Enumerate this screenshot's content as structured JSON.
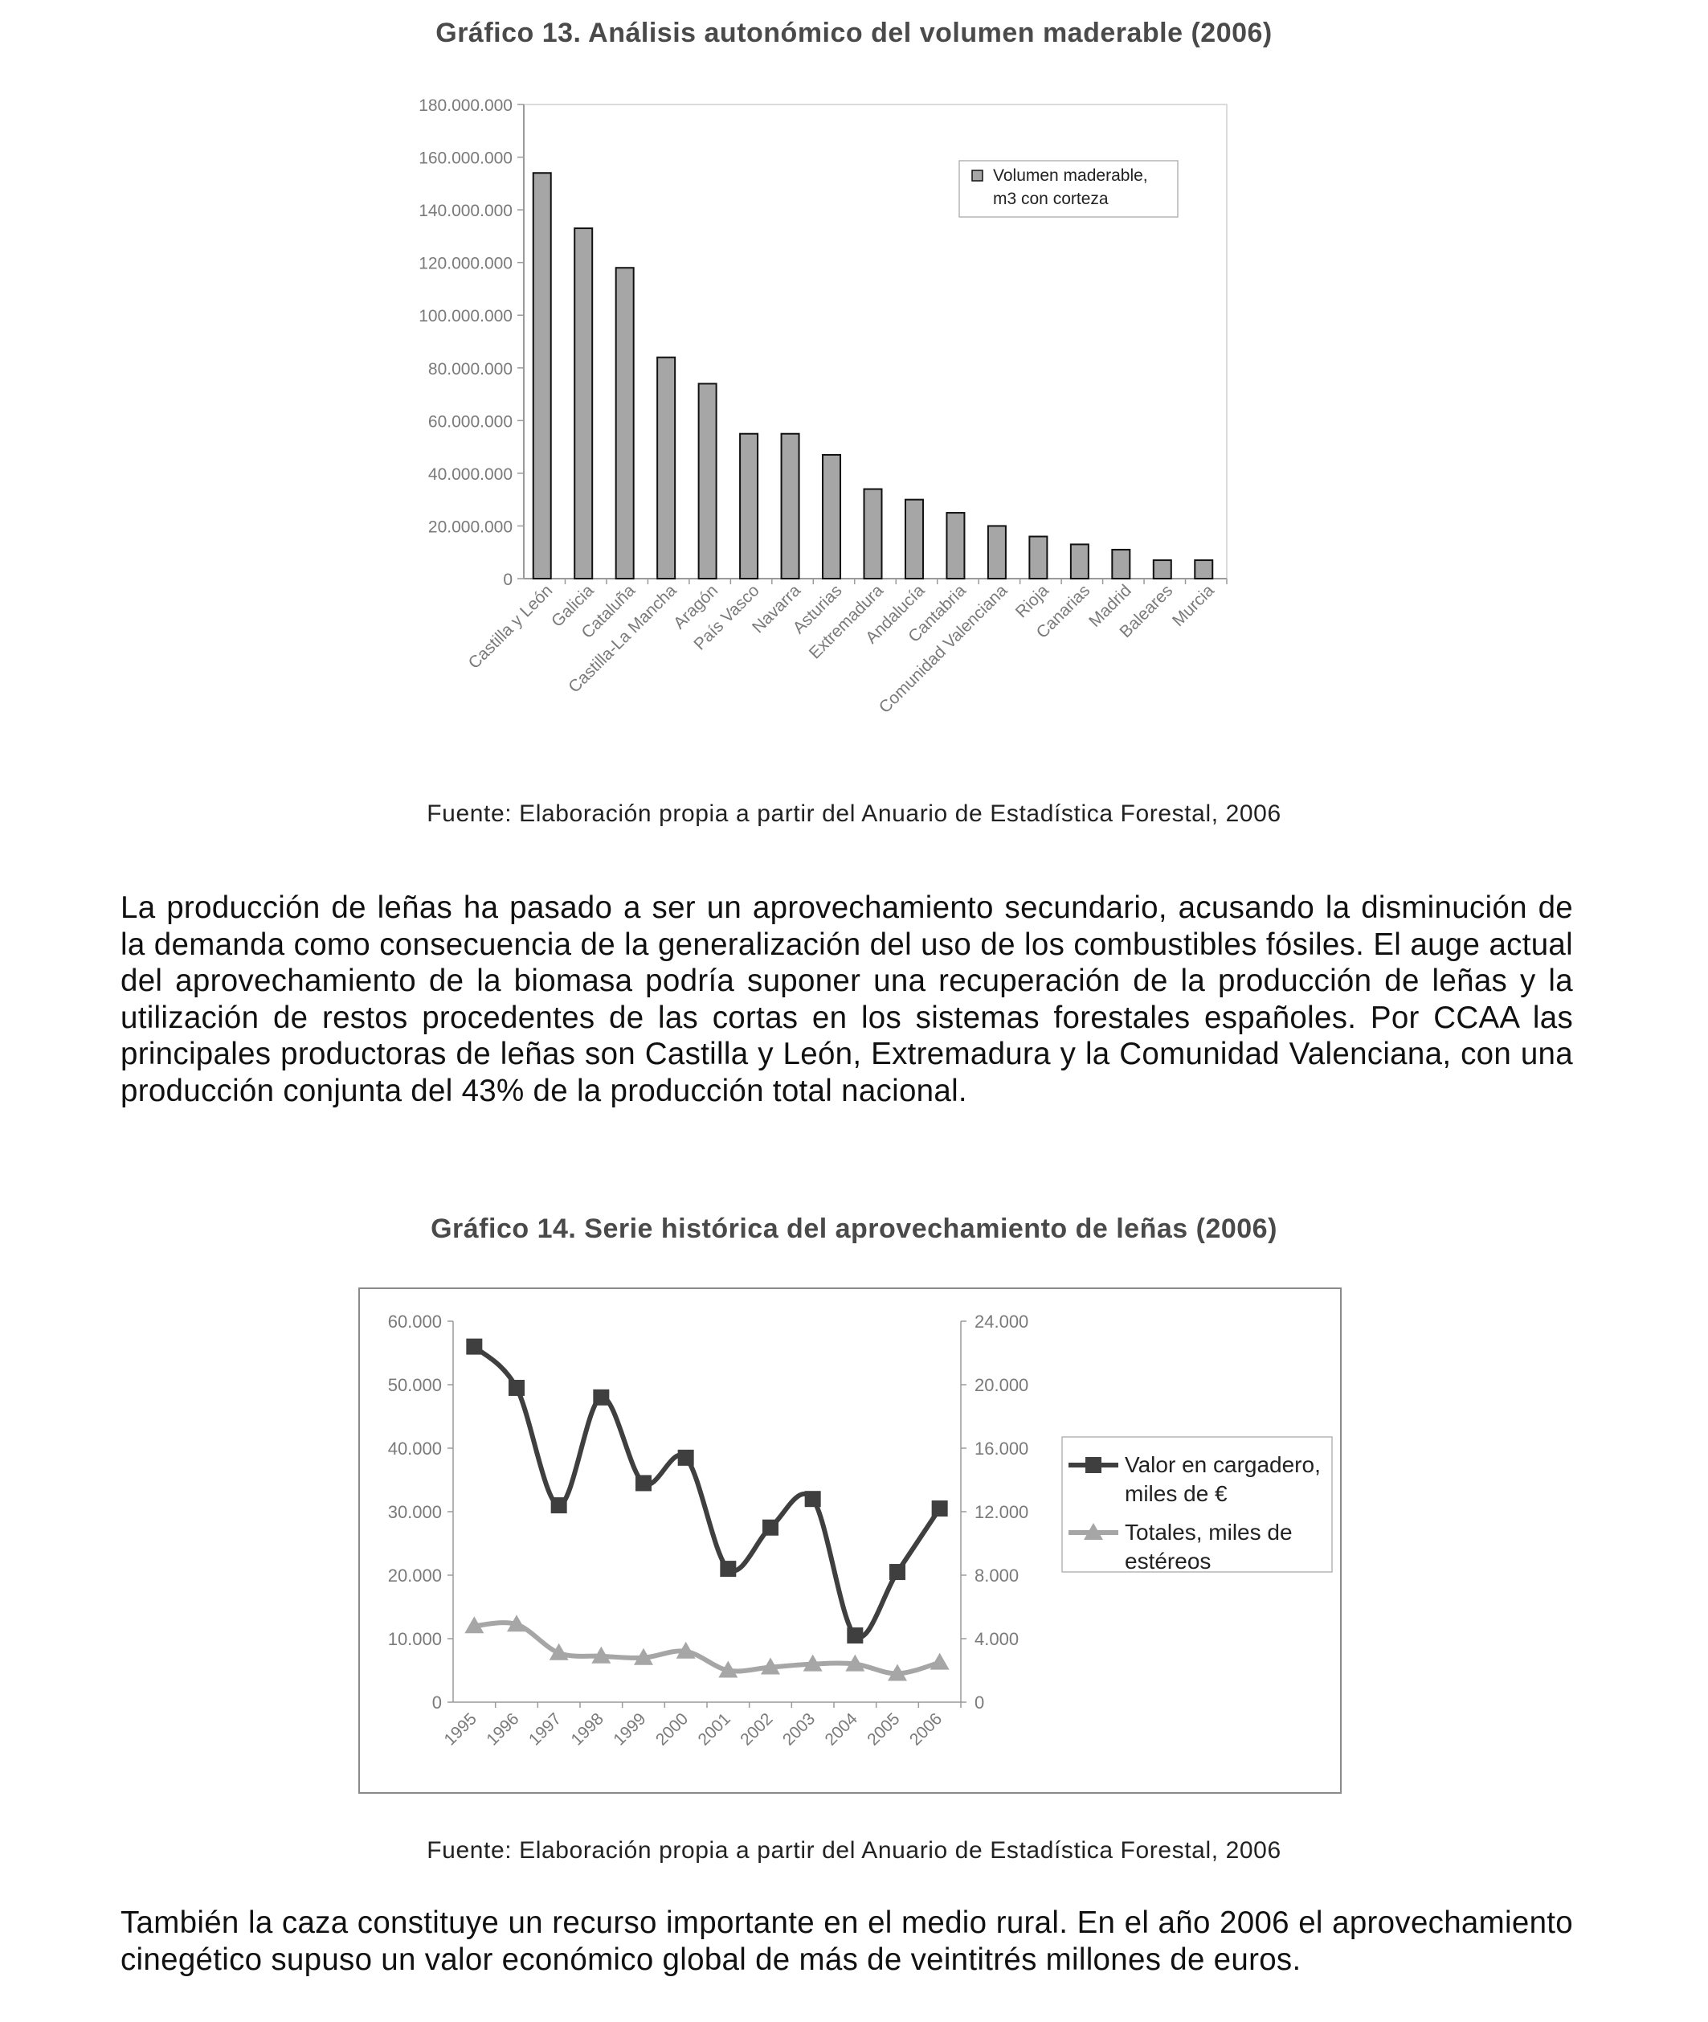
{
  "chart13_title": "Gráfico 13. Análisis autonómico del volumen maderable (2006)",
  "chart13_source": "Fuente: Elaboración propia a partir del Anuario de Estadística Forestal, 2006",
  "paragraph1": "La producción de leñas ha pasado a ser un aprovechamiento secundario, acusando la disminución de la demanda como consecuencia de la generalización del uso de los combustibles fósiles. El auge actual del aprovechamiento de la biomasa podría suponer una recuperación de la producción de leñas y la utilización de restos procedentes de las cortas en los sistemas forestales españoles. Por CCAA las principales productoras de leñas son Castilla y León, Extremadura y la Comunidad Valenciana, con una producción conjunta del 43% de la producción total nacional.",
  "chart14_title": "Gráfico 14. Serie histórica del aprovechamiento de leñas (2006)",
  "chart14_source": "Fuente: Elaboración propia a partir del Anuario de Estadística Forestal, 2006",
  "paragraph2": "También la caza constituye un recurso importante en el medio rural. En el año 2006 el aprovechamiento cinegético supuso un valor económico global de más de veintitrés millones de euros.",
  "chart_data": [
    {
      "type": "bar",
      "title": "Gráfico 13. Análisis autonómico del volumen maderable (2006)",
      "categories": [
        "Castilla y León",
        "Galicia",
        "Cataluña",
        "Castilla-La Mancha",
        "Aragón",
        "País Vasco",
        "Navarra",
        "Asturias",
        "Extremadura",
        "Andalucía",
        "Cantabria",
        "Comunidad Valenciana",
        "Rioja",
        "Canarias",
        "Madrid",
        "Baleares",
        "Murcia"
      ],
      "series": [
        {
          "name": "Volumen maderable, m3 con corteza",
          "values": [
            154000000,
            133000000,
            118000000,
            84000000,
            74000000,
            55000000,
            55000000,
            47000000,
            34000000,
            30000000,
            25000000,
            20000000,
            16000000,
            13000000,
            11000000,
            7000000,
            7000000
          ]
        }
      ],
      "ylim": [
        0,
        180000000
      ],
      "yticks": [
        "0",
        "20.000.000",
        "40.000.000",
        "60.000.000",
        "80.000.000",
        "100.000.000",
        "120.000.000",
        "140.000.000",
        "160.000.000",
        "180.000.000"
      ],
      "legend_lines": [
        "Volumen maderable,",
        "m3 con corteza"
      ],
      "legend_position": "top-right",
      "bar_color": "#a6a6a6"
    },
    {
      "type": "line",
      "title": "Gráfico 14. Serie histórica del aprovechamiento de leñas (2006)",
      "x": [
        "1995",
        "1996",
        "1997",
        "1998",
        "1999",
        "2000",
        "2001",
        "2002",
        "2003",
        "2004",
        "2005",
        "2006"
      ],
      "series": [
        {
          "name": "Valor en cargadero, miles de €",
          "axis": "left",
          "color": "#3f3f3f",
          "marker": "square",
          "values": [
            56000,
            49500,
            31000,
            48000,
            34500,
            38500,
            21000,
            27500,
            32000,
            10500,
            20500,
            30500
          ]
        },
        {
          "name": "Totales, miles de estéreos",
          "axis": "right",
          "color": "#a6a6a6",
          "marker": "triangle",
          "values": [
            4800,
            4900,
            3100,
            2900,
            2800,
            3200,
            2000,
            2200,
            2400,
            2400,
            1800,
            2500
          ]
        }
      ],
      "ylim_left": [
        0,
        60000
      ],
      "ylim_right": [
        0,
        24000
      ],
      "yticks_left": [
        "0",
        "10.000",
        "20.000",
        "30.000",
        "40.000",
        "50.000",
        "60.000"
      ],
      "yticks_right": [
        "0",
        "4.000",
        "8.000",
        "12.000",
        "16.000",
        "20.000",
        "24.000"
      ],
      "legend_items": [
        [
          "Valor en cargadero,",
          "miles de €"
        ],
        [
          "Totales, miles de",
          "estéreos"
        ]
      ],
      "legend_position": "right"
    }
  ]
}
